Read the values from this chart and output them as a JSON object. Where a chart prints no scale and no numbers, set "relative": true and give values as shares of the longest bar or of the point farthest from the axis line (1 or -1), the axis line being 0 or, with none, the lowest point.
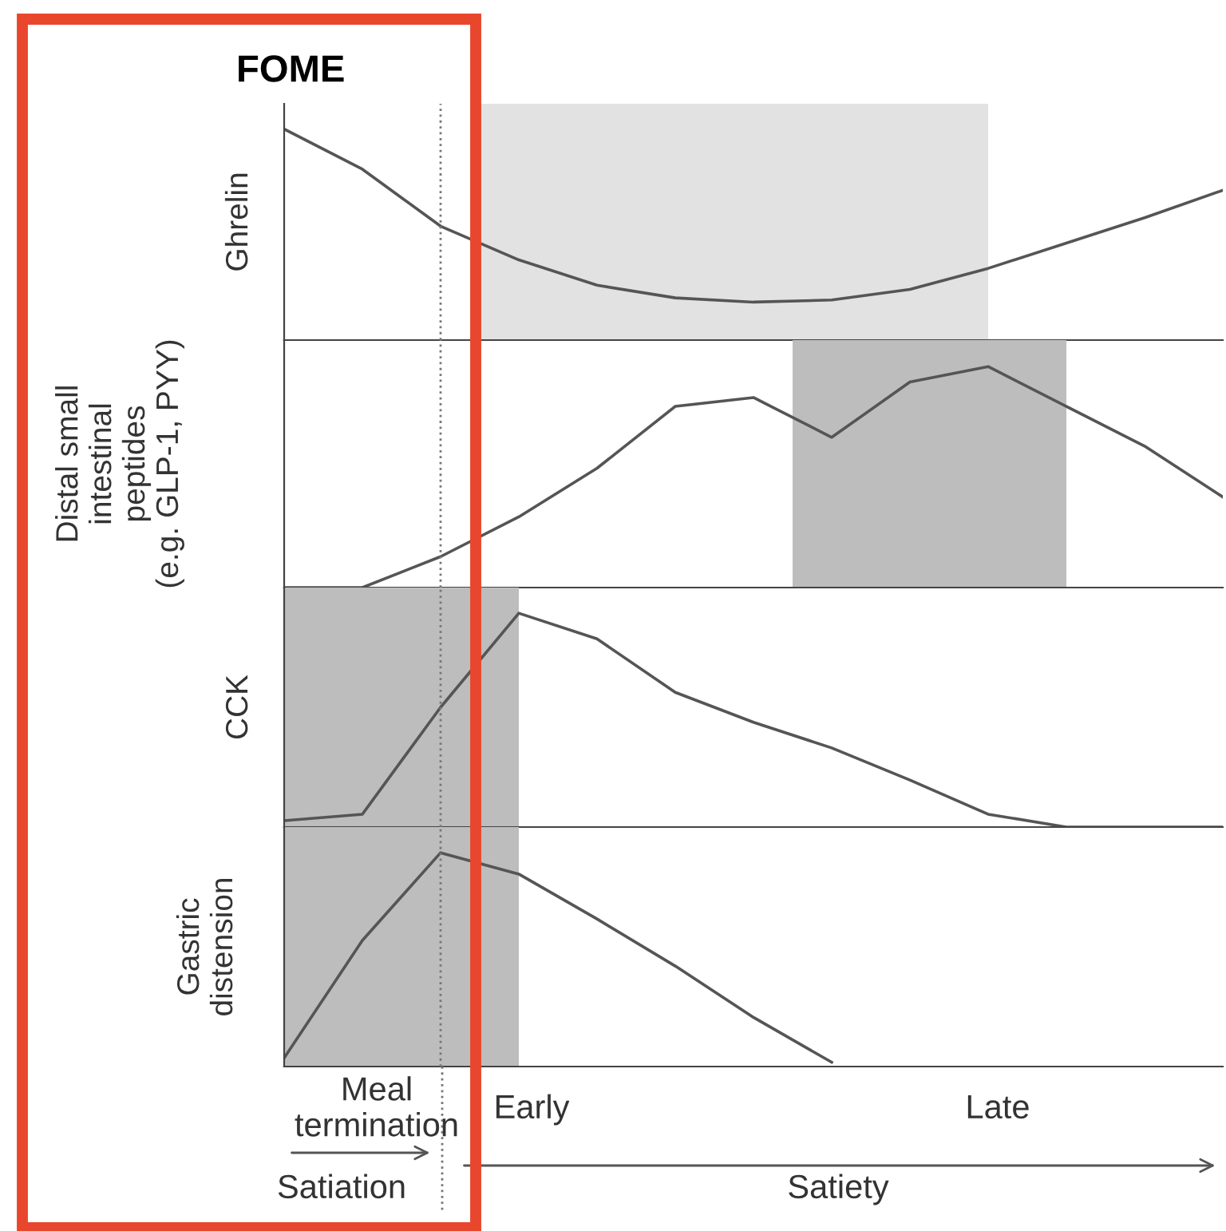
{
  "chart_data": [
    {
      "type": "line",
      "relative": true,
      "title": "FOME",
      "ylabel": "Ghrelin",
      "categories": [
        null,
        null,
        null,
        null,
        null,
        null,
        null,
        null,
        null,
        null,
        null,
        null,
        null
      ],
      "series": [
        {
          "color": "#555555",
          "values": [
            1.0,
            0.81,
            0.54,
            0.38,
            0.26,
            0.2,
            0.18,
            0.19,
            0.24,
            0.34,
            0.46,
            0.58,
            0.71
          ]
        }
      ],
      "legend": false
    },
    {
      "type": "line",
      "relative": true,
      "ylabel": "Distal small\nintestinal\npeptides\n(e.g. GLP-1, PYY)",
      "categories": [
        null,
        null,
        null,
        null,
        null,
        null,
        null,
        null,
        null,
        null,
        null,
        null,
        null
      ],
      "series": [
        {
          "color": "#555555",
          "values": [
            0.0,
            0.0,
            0.14,
            0.32,
            0.54,
            0.82,
            0.86,
            0.68,
            0.93,
            1.0,
            0.82,
            0.64,
            0.41
          ]
        }
      ],
      "legend": false
    },
    {
      "type": "line",
      "relative": true,
      "ylabel": "CCK",
      "categories": [
        null,
        null,
        null,
        null,
        null,
        null,
        null,
        null,
        null,
        null,
        null,
        null,
        null
      ],
      "series": [
        {
          "color": "#555555",
          "values": [
            0.03,
            0.06,
            0.56,
            1.0,
            0.88,
            0.63,
            0.49,
            0.37,
            0.22,
            0.06,
            0.0,
            0.0,
            0.0
          ]
        }
      ],
      "legend": false
    },
    {
      "type": "line",
      "relative": true,
      "ylabel": "Gastric\ndistension",
      "categories": [
        null,
        null,
        null,
        null,
        null,
        null,
        null,
        null,
        null,
        null,
        null,
        null,
        null
      ],
      "series": [
        {
          "color": "#555555",
          "values": [
            0.04,
            0.59,
            1.0,
            0.9,
            0.69,
            0.47,
            0.23,
            0.02,
            null,
            null,
            null,
            null,
            null
          ]
        }
      ],
      "legend": false,
      "annotations": [
        "Meal\ntermination",
        "Early",
        "Late",
        "Satiation",
        "Satiety"
      ]
    }
  ]
}
